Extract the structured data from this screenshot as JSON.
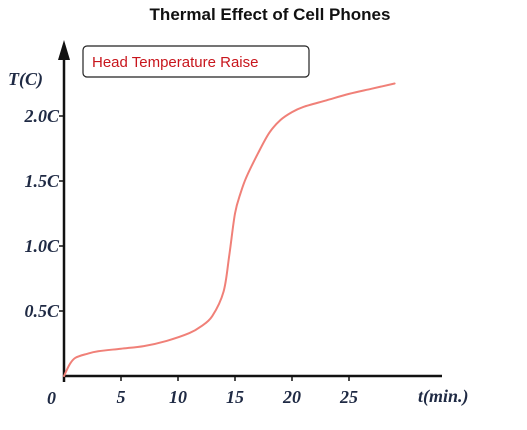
{
  "chart_data": {
    "type": "line",
    "title": "Thermal Effect of Cell Phones",
    "xlabel": "t(min.)",
    "ylabel": "T(C)",
    "xlim": [
      0,
      32
    ],
    "ylim": [
      0,
      2.7
    ],
    "origin_label": "0",
    "x_ticks": [
      {
        "value": 5,
        "label": "5"
      },
      {
        "value": 10,
        "label": "10"
      },
      {
        "value": 15,
        "label": "15"
      },
      {
        "value": 20,
        "label": "20"
      },
      {
        "value": 25,
        "label": "25"
      }
    ],
    "y_ticks": [
      {
        "value": 0.5,
        "label": "0.5C"
      },
      {
        "value": 1.0,
        "label": "1.0C"
      },
      {
        "value": 1.5,
        "label": "1.5C"
      },
      {
        "value": 2.0,
        "label": "2.0C"
      }
    ],
    "legend": {
      "placement": "top-left"
    },
    "grid": false,
    "series": [
      {
        "name": "Head Temperature Raise",
        "color": "#f08078",
        "x": [
          0,
          0.5,
          1,
          2,
          3,
          5,
          7,
          9,
          11,
          12,
          13,
          14,
          14.5,
          15,
          15.5,
          16,
          17,
          18,
          19,
          20,
          21,
          23,
          25,
          27,
          29
        ],
        "y": [
          0,
          0.09,
          0.14,
          0.17,
          0.19,
          0.21,
          0.23,
          0.27,
          0.33,
          0.38,
          0.46,
          0.65,
          0.93,
          1.25,
          1.41,
          1.53,
          1.71,
          1.87,
          1.97,
          2.03,
          2.07,
          2.12,
          2.17,
          2.21,
          2.25
        ]
      }
    ]
  }
}
